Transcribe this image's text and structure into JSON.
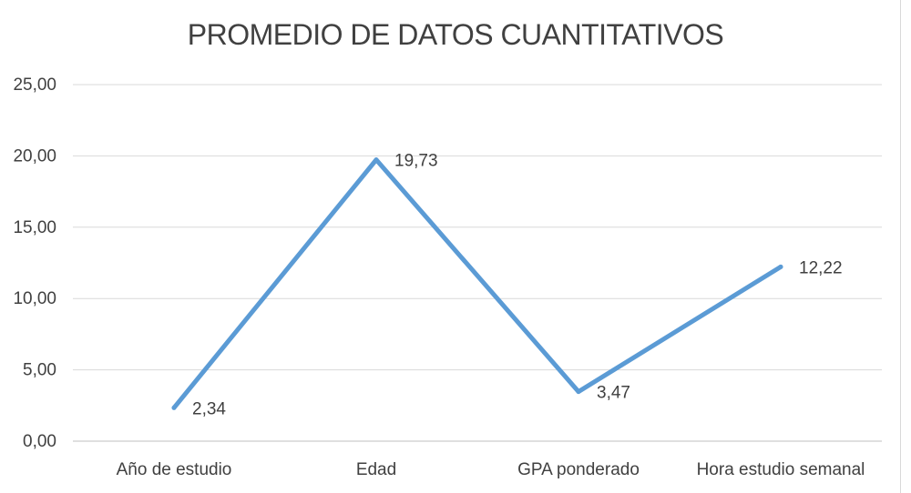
{
  "chart_data": {
    "type": "line",
    "title": "PROMEDIO DE DATOS CUANTITATIVOS",
    "categories": [
      "Año de estudio",
      "Edad",
      "GPA ponderado",
      "Hora estudio semanal"
    ],
    "series": [
      {
        "values": [
          2.34,
          19.73,
          3.47,
          12.22
        ],
        "color": "#5B9BD5"
      }
    ],
    "data_labels": [
      "2,34",
      "19,73",
      "3,47",
      "12,22"
    ],
    "ytick_labels": [
      "0,00",
      "5,00",
      "10,00",
      "15,00",
      "20,00",
      "25,00"
    ],
    "yticks": [
      0,
      5,
      10,
      15,
      20,
      25
    ],
    "ylim": [
      0,
      25
    ],
    "grid": true,
    "legend": "none"
  }
}
